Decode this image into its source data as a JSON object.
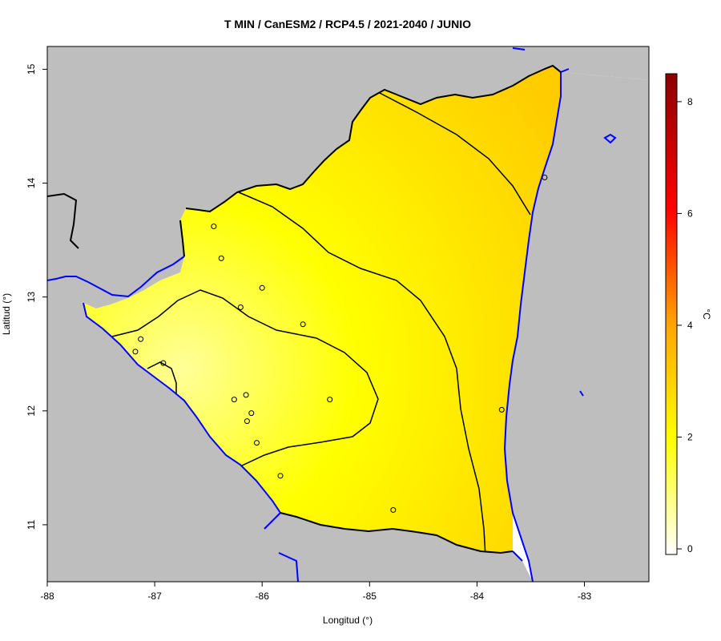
{
  "map": {
    "title": "T MIN / CanESM2 / RCP4.5 / 2021-2040 / JUNIO",
    "x_axis": {
      "label": "Longitud (°)",
      "ticks": [
        "-88",
        "-87",
        "-86",
        "-85",
        "-84",
        "-83"
      ],
      "tick_values": [
        -88,
        -87,
        -86,
        -85,
        -84,
        -83
      ],
      "range": [
        -88,
        -82.4
      ]
    },
    "y_axis": {
      "label": "Latitud (°)",
      "ticks": [
        "11",
        "12",
        "13",
        "14",
        "15"
      ],
      "tick_values": [
        11,
        12,
        13,
        14,
        15
      ],
      "range": [
        10.5,
        15.2
      ]
    },
    "colorbar": {
      "unit": "°C",
      "ticks": [
        "0",
        "2",
        "4",
        "6",
        "8"
      ],
      "tick_values": [
        0,
        2,
        4,
        6,
        8
      ],
      "range": [
        -0.1,
        8.5
      ],
      "colors": [
        "#ffffff",
        "#ffff00",
        "#ffa500",
        "#ff0000",
        "#8b0000"
      ]
    },
    "colors": {
      "land_outside": "#bebebe",
      "sea_outside": "#ffffff",
      "coastline": "#0000ff",
      "border": "#000000",
      "contour": "#000000",
      "field_low": "#ffff99",
      "field_mid": "#ffff00",
      "field_high": "#ffcc00"
    }
  },
  "chart_data": {
    "type": "heatmap",
    "title": "T MIN / CanESM2 / RCP4.5 / 2021-2040 / JUNIO",
    "xlabel": "Longitud (°)",
    "ylabel": "Latitud (°)",
    "xlim": [
      -88,
      -82.4
    ],
    "ylim": [
      10.5,
      15.2
    ],
    "colorbar_label": "°C",
    "colorbar_range": [
      -0.1,
      8.5
    ],
    "stations": [
      {
        "lon": -86.45,
        "lat": 13.62
      },
      {
        "lon": -86.38,
        "lat": 13.34
      },
      {
        "lon": -86.0,
        "lat": 13.08
      },
      {
        "lon": -86.2,
        "lat": 12.91
      },
      {
        "lon": -85.62,
        "lat": 12.76
      },
      {
        "lon": -87.13,
        "lat": 12.63
      },
      {
        "lon": -87.18,
        "lat": 12.52
      },
      {
        "lon": -86.92,
        "lat": 12.42
      },
      {
        "lon": -86.15,
        "lat": 12.14
      },
      {
        "lon": -86.26,
        "lat": 12.1
      },
      {
        "lon": -85.37,
        "lat": 12.1
      },
      {
        "lon": -86.1,
        "lat": 11.98
      },
      {
        "lon": -86.14,
        "lat": 11.91
      },
      {
        "lon": -86.05,
        "lat": 11.72
      },
      {
        "lon": -85.83,
        "lat": 11.43
      },
      {
        "lon": -84.78,
        "lat": 11.13
      },
      {
        "lon": -83.77,
        "lat": 12.01
      },
      {
        "lon": -83.37,
        "lat": 14.05
      }
    ]
  }
}
